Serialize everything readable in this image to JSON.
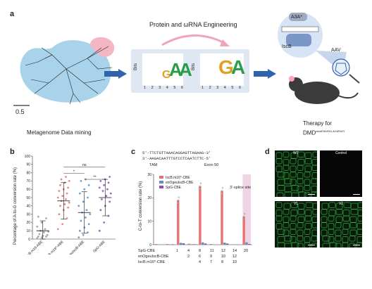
{
  "panel_a": {
    "letter": "a",
    "scale_label": "0.5",
    "metagenome_label": "Metagenome Data mining",
    "engineering_title": "Protein and ωRNA Engineering",
    "logo_axis_label": "Bits",
    "logo_positions": [
      "1",
      "2",
      "3",
      "4",
      "5",
      "6"
    ],
    "logo_ticks": [
      "2",
      "1",
      "0"
    ],
    "logo_left_letters": [
      "G",
      "A",
      "A"
    ],
    "logo_right_letters": [
      "G",
      "A"
    ],
    "diagram_labels": {
      "a3a": "A3A*",
      "iscb": "IscB",
      "aav": "AAV"
    },
    "therapy_line1": "Therapy for",
    "therapy_line2": "DMD",
    "therapy_superscript": "delΔE50/E51;K/hE50/Y"
  },
  "panel_b": {
    "letter": "b",
    "ylabel": "Percentage of A-to-G conversion rate (%)",
    "yticks": [
      "0",
      "10",
      "20",
      "30",
      "40",
      "50",
      "60",
      "70",
      "80",
      "90",
      "100"
    ],
    "categories": [
      "IscB.m16-ABE",
      "IscB.m16*-ABE",
      "enOgeuIscB-ABE",
      "SpG-ABE"
    ],
    "significance": [
      "ns",
      "*",
      "**"
    ]
  },
  "panel_c": {
    "letter": "c",
    "seq_line1": "5'-TTCTGTTAAACAGGAGTTAGAAG-3'",
    "seq_line2": "3'-AAGACAATTTGTCCTCAATCTTC-5'",
    "tam_label": "TAM",
    "exon_label": "Exon 50",
    "ylabel": "C-to-T conversion rate (%)",
    "yticks": [
      "0",
      "10",
      "20",
      "30"
    ],
    "splice_label": "3'-splice site",
    "row_labels": [
      "SpG-CBE",
      "enOgeuIscB-CBE",
      "IscB.m16*-CBE"
    ],
    "row_values": [
      [
        "1",
        "4",
        "8",
        "11",
        "12",
        "14",
        "20"
      ],
      [
        "2",
        "6",
        "9",
        "10",
        "12"
      ],
      [
        "4",
        "7",
        "8",
        "10"
      ]
    ]
  },
  "panel_d": {
    "letter": "d",
    "labels": [
      "WT",
      "Control",
      "V1",
      "V2"
    ]
  },
  "colors": {
    "iscb_m16": "#e8716f",
    "enoge": "#5b8fc9",
    "spg": "#8a4fb0",
    "tree_blue": "#a9d3ea",
    "tree_pink": "#f4b6c2",
    "arrow_blue": "#2f63ad",
    "splice_band": "#eac9dd"
  },
  "chart_data": [
    {
      "type": "scatter",
      "title": "",
      "xlabel": "",
      "ylabel": "Percentage of A-to-G conversion rate (%)",
      "ylim": [
        0,
        100
      ],
      "categories": [
        "IscB.m16-ABE",
        "IscB.m16*-ABE",
        "enOgeuIscB-ABE",
        "SpG-ABE"
      ],
      "series": [
        {
          "name": "IscB.m16-ABE",
          "mean": 10,
          "sd": 12,
          "values": [
            1,
            2,
            3,
            3,
            4,
            5,
            6,
            8,
            9,
            10,
            12,
            15,
            20,
            25,
            27
          ]
        },
        {
          "name": "IscB.m16*-ABE",
          "mean": 46,
          "sd": 22,
          "values": [
            12,
            18,
            25,
            30,
            35,
            38,
            40,
            42,
            44,
            46,
            48,
            50,
            52,
            55,
            58,
            60,
            62,
            65,
            68,
            70,
            72,
            75
          ]
        },
        {
          "name": "enOgeuIscB-ABE",
          "mean": 32,
          "sd": 25,
          "values": [
            2,
            5,
            8,
            10,
            14,
            18,
            22,
            26,
            30,
            32,
            35,
            40,
            45,
            50,
            55,
            60,
            65,
            70,
            72
          ]
        },
        {
          "name": "SpG-ABE",
          "mean": 50,
          "sd": 22,
          "values": [
            10,
            20,
            28,
            35,
            40,
            45,
            48,
            52,
            55,
            58,
            60,
            62,
            65,
            68,
            70,
            72,
            75
          ]
        }
      ],
      "annotations": [
        "ns",
        "*",
        "**"
      ]
    },
    {
      "type": "bar",
      "title": "",
      "xlabel": "",
      "ylabel": "C-to-T conversion rate (%)",
      "ylim": [
        0,
        30
      ],
      "categories": [
        "1",
        "2",
        "3",
        "4",
        "5",
        "6",
        "7",
        "8",
        "9"
      ],
      "series": [
        {
          "name": "IscB.m16*-CBE",
          "values": [
            0.3,
            0.3,
            19,
            0.4,
            25,
            0.3,
            23,
            0.2,
            12
          ]
        },
        {
          "name": "enOgeuIscB-CBE",
          "values": [
            0.1,
            0.1,
            0.8,
            0.2,
            1,
            0.1,
            0.9,
            0.1,
            1
          ]
        },
        {
          "name": "SpG-CBE",
          "values": [
            0.1,
            0.2,
            0.6,
            0.2,
            0.5,
            0.1,
            0.5,
            0.1,
            0.3
          ]
        }
      ],
      "annotations": [
        "3'-splice site"
      ]
    }
  ]
}
